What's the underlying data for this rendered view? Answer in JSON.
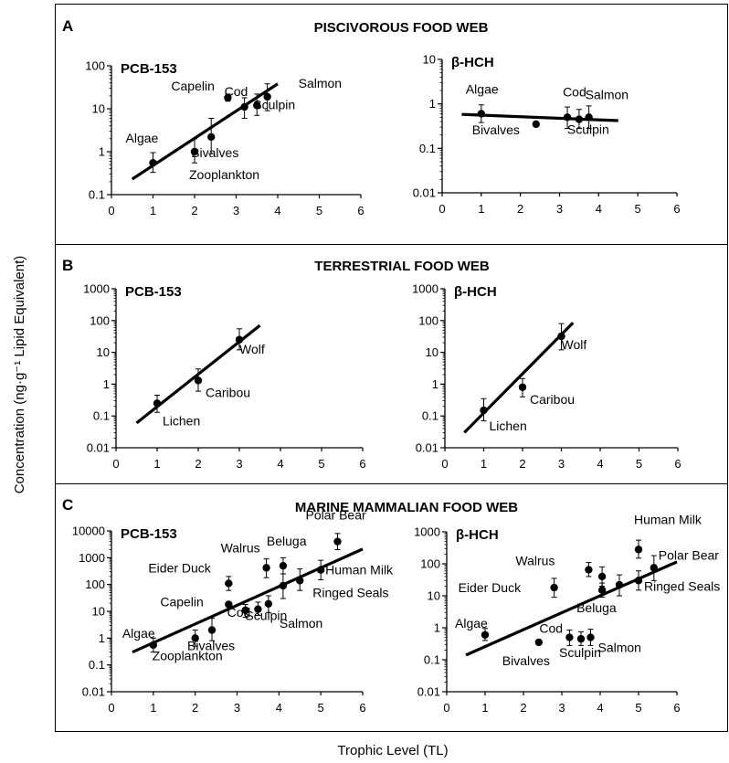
{
  "figure": {
    "ylabel": "Concentration (ng·g⁻¹ Lipid Equivalent)",
    "xlabel": "Trophic Level (TL)"
  },
  "chart_data": [
    {
      "type": "scatter",
      "panel": "A",
      "title": "PISCIVOROUS FOOD WEB",
      "chemical": "PCB-153",
      "xlim": [
        0,
        6
      ],
      "ylim": [
        0.1,
        100
      ],
      "yscale": "log",
      "xticks": [
        "0",
        "1",
        "2",
        "3",
        "4",
        "5",
        "6"
      ],
      "yticks": [
        "100",
        "10",
        "1",
        "0.1"
      ],
      "points": [
        {
          "label": "Algae",
          "x": 1.0,
          "y": 0.55,
          "lo": 0.33,
          "hi": 0.95
        },
        {
          "label": "Zooplankton",
          "x": 2.0,
          "y": 1.0,
          "lo": 0.55,
          "hi": 2.0
        },
        {
          "label": "Bivalves",
          "x": 2.4,
          "y": 2.2,
          "lo": 0.9,
          "hi": 6.0
        },
        {
          "label": "Capelin",
          "x": 2.8,
          "y": 18,
          "lo": 15,
          "hi": 22
        },
        {
          "label": "Cod",
          "x": 3.2,
          "y": 11,
          "lo": 6,
          "hi": 18
        },
        {
          "label": "Sculpin",
          "x": 3.5,
          "y": 12,
          "lo": 7,
          "hi": 22
        },
        {
          "label": "Salmon",
          "x": 3.75,
          "y": 19,
          "lo": 9,
          "hi": 38
        }
      ],
      "fit": {
        "x": [
          0.5,
          4.0
        ],
        "y": [
          0.23,
          38
        ]
      }
    },
    {
      "type": "scatter",
      "panel": "A",
      "title": "",
      "chemical": "β-HCH",
      "xlim": [
        0,
        6
      ],
      "ylim": [
        0.01,
        10
      ],
      "yscale": "log",
      "xticks": [
        "0",
        "1",
        "2",
        "3",
        "4",
        "5",
        "6"
      ],
      "yticks": [
        "10",
        "1",
        "0.1",
        "0.01"
      ],
      "points": [
        {
          "label": "Algae",
          "x": 1.0,
          "y": 0.6,
          "lo": 0.38,
          "hi": 0.95
        },
        {
          "label": "Bivalves",
          "x": 2.4,
          "y": 0.35,
          "lo": 0.35,
          "hi": 0.35
        },
        {
          "label": "Cod",
          "x": 3.2,
          "y": 0.5,
          "lo": 0.28,
          "hi": 0.85
        },
        {
          "label": "Sculpin",
          "x": 3.5,
          "y": 0.45,
          "lo": 0.28,
          "hi": 0.75
        },
        {
          "label": "Salmon",
          "x": 3.75,
          "y": 0.5,
          "lo": 0.28,
          "hi": 0.9
        }
      ],
      "fit": {
        "x": [
          0.5,
          4.5
        ],
        "y": [
          0.58,
          0.42
        ]
      }
    },
    {
      "type": "scatter",
      "panel": "B",
      "title": "TERRESTRIAL FOOD WEB",
      "chemical": "PCB-153",
      "xlim": [
        0,
        6
      ],
      "ylim": [
        0.01,
        1000
      ],
      "yscale": "log",
      "xticks": [
        "0",
        "1",
        "2",
        "3",
        "4",
        "5",
        "6"
      ],
      "yticks": [
        "1000",
        "100",
        "10",
        "1",
        "0.1",
        "0.01"
      ],
      "points": [
        {
          "label": "Lichen",
          "x": 1.0,
          "y": 0.25,
          "lo": 0.13,
          "hi": 0.45
        },
        {
          "label": "Caribou",
          "x": 2.0,
          "y": 1.3,
          "lo": 0.6,
          "hi": 3.0
        },
        {
          "label": "Wolf",
          "x": 3.0,
          "y": 25,
          "lo": 12,
          "hi": 55
        }
      ],
      "fit": {
        "x": [
          0.5,
          3.5
        ],
        "y": [
          0.06,
          70
        ]
      }
    },
    {
      "type": "scatter",
      "panel": "B",
      "title": "",
      "chemical": "β-HCH",
      "xlim": [
        0,
        6
      ],
      "ylim": [
        0.01,
        1000
      ],
      "yscale": "log",
      "xticks": [
        "0",
        "1",
        "2",
        "3",
        "4",
        "5",
        "6"
      ],
      "yticks": [
        "1000",
        "100",
        "10",
        "1",
        "0.1",
        "0.01"
      ],
      "points": [
        {
          "label": "Lichen",
          "x": 1.0,
          "y": 0.15,
          "lo": 0.07,
          "hi": 0.35
        },
        {
          "label": "Caribou",
          "x": 2.0,
          "y": 0.8,
          "lo": 0.4,
          "hi": 1.5
        },
        {
          "label": "Wolf",
          "x": 3.0,
          "y": 32,
          "lo": 12,
          "hi": 80
        }
      ],
      "fit": {
        "x": [
          0.5,
          3.3
        ],
        "y": [
          0.03,
          85
        ]
      }
    },
    {
      "type": "scatter",
      "panel": "C",
      "title": "MARINE MAMMALIAN FOOD WEB",
      "chemical": "PCB-153",
      "xlim": [
        0,
        6
      ],
      "ylim": [
        0.01,
        10000
      ],
      "yscale": "log",
      "xticks": [
        "0",
        "1",
        "2",
        "3",
        "4",
        "5",
        "6"
      ],
      "yticks": [
        "10000",
        "1000",
        "100",
        "10",
        "1",
        "0.1",
        "0.01"
      ],
      "points": [
        {
          "label": "Algae",
          "x": 1.0,
          "y": 0.55,
          "lo": 0.3,
          "hi": 1.0
        },
        {
          "label": "Zooplankton",
          "x": 2.0,
          "y": 1.0,
          "lo": 0.5,
          "hi": 2.0
        },
        {
          "label": "Bivalves",
          "x": 2.4,
          "y": 2.0,
          "lo": 0.8,
          "hi": 5.5
        },
        {
          "label": "Eider Duck",
          "x": 2.8,
          "y": 110,
          "lo": 60,
          "hi": 200
        },
        {
          "label": "Capelin",
          "x": 2.8,
          "y": 18,
          "lo": 15,
          "hi": 22
        },
        {
          "label": "Cod",
          "x": 3.2,
          "y": 11,
          "lo": 6,
          "hi": 18
        },
        {
          "label": "Sculpin",
          "x": 3.5,
          "y": 12,
          "lo": 7,
          "hi": 22
        },
        {
          "label": "Salmon",
          "x": 3.75,
          "y": 19,
          "lo": 9,
          "hi": 38
        },
        {
          "label": "Walrus",
          "x": 3.7,
          "y": 420,
          "lo": 180,
          "hi": 900
        },
        {
          "label": "Beluga",
          "x": 4.1,
          "y": 500,
          "lo": 250,
          "hi": 1000
        },
        {
          "label": "Ringed Seals",
          "x": 4.1,
          "y": 90,
          "lo": 30,
          "hi": 250
        },
        {
          "label": "Ringed Seals",
          "x": 4.5,
          "y": 140,
          "lo": 60,
          "hi": 380
        },
        {
          "label": "Human Milk",
          "x": 5.0,
          "y": 350,
          "lo": 150,
          "hi": 800
        },
        {
          "label": "Polar Bear",
          "x": 5.4,
          "y": 4000,
          "lo": 2000,
          "hi": 8000
        }
      ],
      "fit": {
        "x": [
          0.5,
          6.0
        ],
        "y": [
          0.3,
          2100
        ]
      }
    },
    {
      "type": "scatter",
      "panel": "C",
      "title": "",
      "chemical": "β-HCH",
      "xlim": [
        0,
        6
      ],
      "ylim": [
        0.01,
        1000
      ],
      "yscale": "log",
      "xticks": [
        "0",
        "1",
        "2",
        "3",
        "4",
        "5",
        "6"
      ],
      "yticks": [
        "1000",
        "100",
        "10",
        "1",
        "0.1",
        "0.01"
      ],
      "points": [
        {
          "label": "Algae",
          "x": 1.0,
          "y": 0.6,
          "lo": 0.4,
          "hi": 0.95
        },
        {
          "label": "Bivalves",
          "x": 2.4,
          "y": 0.35,
          "lo": 0.35,
          "hi": 0.35
        },
        {
          "label": "Eider Duck",
          "x": 2.8,
          "y": 18,
          "lo": 9,
          "hi": 35
        },
        {
          "label": "Cod",
          "x": 3.2,
          "y": 0.5,
          "lo": 0.28,
          "hi": 0.85
        },
        {
          "label": "Sculpin",
          "x": 3.5,
          "y": 0.45,
          "lo": 0.28,
          "hi": 0.75
        },
        {
          "label": "Salmon",
          "x": 3.75,
          "y": 0.5,
          "lo": 0.28,
          "hi": 0.9
        },
        {
          "label": "Walrus",
          "x": 3.7,
          "y": 65,
          "lo": 40,
          "hi": 110
        },
        {
          "label": "Beluga",
          "x": 4.05,
          "y": 40,
          "lo": 20,
          "hi": 80
        },
        {
          "label": "Beluga",
          "x": 4.05,
          "y": 15,
          "lo": 9,
          "hi": 25
        },
        {
          "label": "Ringed Seals",
          "x": 4.5,
          "y": 22,
          "lo": 10,
          "hi": 45
        },
        {
          "label": "Human Milk",
          "x": 5.0,
          "y": 280,
          "lo": 150,
          "hi": 550
        },
        {
          "label": "Ringed Seals",
          "x": 5.0,
          "y": 30,
          "lo": 15,
          "hi": 60
        },
        {
          "label": "Polar Bear",
          "x": 5.4,
          "y": 75,
          "lo": 30,
          "hi": 180
        }
      ],
      "fit": {
        "x": [
          0.5,
          6.0
        ],
        "y": [
          0.14,
          115
        ]
      }
    }
  ],
  "text_labels": [
    [
      "Capelin",
      "Salmon",
      "Cod",
      "Sculpin",
      "Bivalves",
      "Algae",
      "Zooplankton"
    ],
    [
      "Algae",
      "Cod",
      "Salmon",
      "Bivalves",
      "Sculpin"
    ],
    [
      "Wolf",
      "Caribou",
      "Lichen"
    ],
    [
      "Wolf",
      "Caribou",
      "Lichen"
    ],
    [
      "Polar Bear",
      "Walrus",
      "Beluga",
      "Eider Duck",
      "Human Milk",
      "Capelin",
      "Ringed Seals",
      "Cod",
      "Salmon",
      "Sculpin",
      "Bivalves",
      "Algae",
      "Zooplankton"
    ],
    [
      "Human Milk",
      "Polar Bear",
      "Walrus",
      "Eider Duck",
      "Ringed Seals",
      "Beluga",
      "Algae",
      "Cod",
      "Salmon",
      "Bivalves",
      "Sculpin"
    ]
  ]
}
